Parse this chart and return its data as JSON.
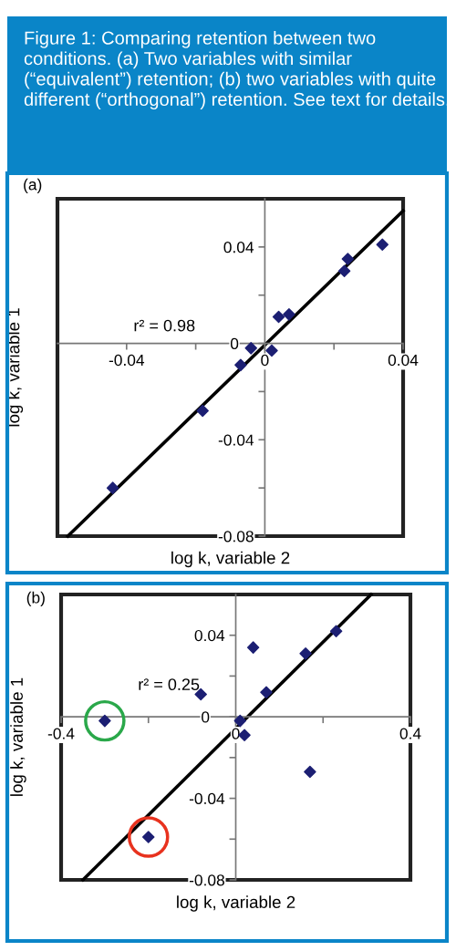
{
  "chart_data": [
    {
      "type": "scatter",
      "title": "Figure 1: Comparing retention between two conditions. (a) Two variables with similar (“equivalent”) retention; (b) two variables with quite different (“orthogonal”) retention. See text for details.",
      "xlabel": "log k, variable 2",
      "ylabel": "log k, variable 1",
      "annotations": [
        "(a)",
        "r² = 0.98"
      ],
      "xlim": [
        -0.06,
        0.04
      ],
      "ylim": [
        -0.08,
        0.06
      ],
      "xticks": [
        {
          "value": -0.04,
          "label": "-0.04"
        },
        {
          "value": -0.02,
          "label": null
        },
        0,
        {
          "value": 0.02,
          "label": null
        },
        0.04
      ],
      "yticks": [
        {
          "value": -0.08,
          "label": "-0.08"
        },
        {
          "value": -0.06,
          "label": null
        },
        {
          "value": -0.04,
          "label": "-0.04"
        },
        {
          "value": -0.02,
          "label": null
        },
        0,
        {
          "value": 0.02,
          "label": null
        },
        0.04
      ],
      "grid": false,
      "series": [
        {
          "type": "scatter",
          "marker": "diamond",
          "color": "#1c1f73",
          "x": [
            -0.044,
            -0.018,
            -0.007,
            -0.004,
            0.002,
            0.004,
            0.007,
            0.023,
            0.024,
            0.034
          ],
          "values": [
            -0.06,
            -0.028,
            -0.009,
            -0.002,
            -0.003,
            0.011,
            0.012,
            0.03,
            0.035,
            0.041
          ]
        },
        {
          "type": "line",
          "marker": "none",
          "color": "#000000",
          "x": [
            -0.057,
            0.04
          ],
          "values": [
            -0.08,
            0.055
          ]
        }
      ]
    },
    {
      "type": "scatter",
      "xlabel": "log k, variable 2",
      "ylabel": "log k, variable 1",
      "annotations": [
        "(b)",
        "r² = 0.25"
      ],
      "xlim": [
        -0.4,
        0.4
      ],
      "ylim": [
        -0.08,
        0.06
      ],
      "xticks": [
        {
          "value": -0.4,
          "label": "-0.4"
        },
        {
          "value": -0.2,
          "label": null
        },
        0,
        {
          "value": 0.2,
          "label": null
        },
        0.4
      ],
      "yticks": [
        {
          "value": -0.08,
          "label": "-0.08"
        },
        {
          "value": -0.06,
          "label": null
        },
        {
          "value": -0.04,
          "label": "-0.04"
        },
        {
          "value": -0.02,
          "label": null
        },
        0,
        {
          "value": 0.02,
          "label": null
        },
        0.04
      ],
      "grid": false,
      "series": [
        {
          "type": "scatter",
          "marker": "diamond",
          "color": "#1c1f73",
          "x": [
            -0.3,
            -0.2,
            -0.08,
            0.01,
            0.02,
            0.04,
            0.07,
            0.16,
            0.23,
            0.17
          ],
          "values": [
            -0.002,
            -0.059,
            0.011,
            -0.002,
            -0.009,
            0.034,
            0.012,
            0.031,
            0.042,
            -0.027
          ]
        },
        {
          "type": "line",
          "marker": "none",
          "color": "#000000",
          "x": [
            -0.35,
            0.31
          ],
          "values": [
            -0.08,
            0.06
          ]
        }
      ]
    }
  ]
}
